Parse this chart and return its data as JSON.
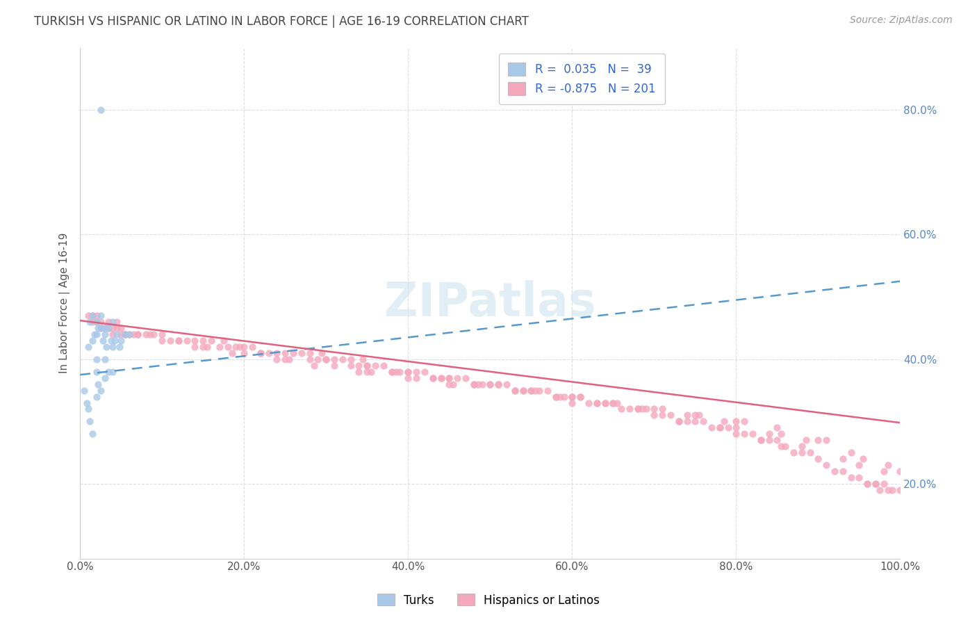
{
  "title": "TURKISH VS HISPANIC OR LATINO IN LABOR FORCE | AGE 16-19 CORRELATION CHART",
  "source_text": "Source: ZipAtlas.com",
  "ylabel": "In Labor Force | Age 16-19",
  "watermark": "ZIPatlas",
  "blue_scatter_color": "#a8c8e8",
  "pink_scatter_color": "#f4a8bc",
  "blue_line_color": "#5599cc",
  "pink_line_color": "#e06080",
  "background_color": "#ffffff",
  "grid_color": "#cccccc",
  "xlim": [
    0.0,
    1.0
  ],
  "ylim": [
    0.08,
    0.9
  ],
  "xtick_labels": [
    "0.0%",
    "20.0%",
    "40.0%",
    "60.0%",
    "80.0%",
    "100.0%"
  ],
  "xtick_values": [
    0.0,
    0.2,
    0.4,
    0.6,
    0.8,
    1.0
  ],
  "ytick_labels": [
    "20.0%",
    "40.0%",
    "60.0%",
    "80.0%"
  ],
  "ytick_values": [
    0.2,
    0.4,
    0.6,
    0.8
  ],
  "turks_x": [
    0.005,
    0.008,
    0.01,
    0.01,
    0.012,
    0.012,
    0.015,
    0.015,
    0.015,
    0.018,
    0.02,
    0.02,
    0.02,
    0.02,
    0.02,
    0.022,
    0.022,
    0.025,
    0.025,
    0.025,
    0.028,
    0.03,
    0.03,
    0.03,
    0.03,
    0.032,
    0.035,
    0.035,
    0.038,
    0.04,
    0.04,
    0.04,
    0.042,
    0.045,
    0.048,
    0.05,
    0.055,
    0.06,
    0.025
  ],
  "turks_y": [
    0.35,
    0.33,
    0.42,
    0.32,
    0.46,
    0.3,
    0.47,
    0.43,
    0.28,
    0.44,
    0.46,
    0.44,
    0.4,
    0.38,
    0.34,
    0.45,
    0.36,
    0.47,
    0.45,
    0.35,
    0.43,
    0.45,
    0.44,
    0.4,
    0.37,
    0.42,
    0.45,
    0.38,
    0.43,
    0.46,
    0.42,
    0.38,
    0.43,
    0.44,
    0.42,
    0.43,
    0.44,
    0.44,
    0.8
  ],
  "hisp_x": [
    0.01,
    0.015,
    0.02,
    0.025,
    0.03,
    0.035,
    0.04,
    0.045,
    0.05,
    0.055,
    0.06,
    0.065,
    0.07,
    0.08,
    0.09,
    0.1,
    0.11,
    0.12,
    0.13,
    0.14,
    0.15,
    0.16,
    0.17,
    0.175,
    0.18,
    0.19,
    0.195,
    0.2,
    0.21,
    0.22,
    0.23,
    0.24,
    0.25,
    0.26,
    0.27,
    0.28,
    0.29,
    0.295,
    0.3,
    0.31,
    0.32,
    0.33,
    0.34,
    0.345,
    0.35,
    0.36,
    0.37,
    0.38,
    0.39,
    0.4,
    0.41,
    0.42,
    0.43,
    0.44,
    0.45,
    0.46,
    0.47,
    0.48,
    0.49,
    0.5,
    0.51,
    0.52,
    0.53,
    0.54,
    0.55,
    0.56,
    0.57,
    0.58,
    0.59,
    0.6,
    0.61,
    0.62,
    0.63,
    0.64,
    0.65,
    0.66,
    0.67,
    0.68,
    0.69,
    0.7,
    0.71,
    0.72,
    0.73,
    0.74,
    0.75,
    0.76,
    0.77,
    0.78,
    0.79,
    0.8,
    0.81,
    0.82,
    0.83,
    0.84,
    0.85,
    0.855,
    0.86,
    0.87,
    0.88,
    0.89,
    0.9,
    0.91,
    0.92,
    0.93,
    0.94,
    0.95,
    0.96,
    0.97,
    0.98,
    0.99,
    1.0,
    0.025,
    0.035,
    0.045,
    0.3,
    0.35,
    0.4,
    0.45,
    0.5,
    0.55,
    0.6,
    0.65,
    0.7,
    0.75,
    0.8,
    0.85,
    0.9,
    0.95,
    0.28,
    0.33,
    0.38,
    0.43,
    0.48,
    0.53,
    0.58,
    0.63,
    0.68,
    0.73,
    0.78,
    0.83,
    0.88,
    0.93,
    0.98,
    0.015,
    0.07,
    0.15,
    0.22,
    0.31,
    0.41,
    0.51,
    0.61,
    0.71,
    0.81,
    0.91,
    0.055,
    0.155,
    0.255,
    0.355,
    0.455,
    0.555,
    0.655,
    0.755,
    0.855,
    0.955,
    0.085,
    0.185,
    0.285,
    0.385,
    0.485,
    0.585,
    0.685,
    0.785,
    0.885,
    0.985,
    0.04,
    0.14,
    0.24,
    0.34,
    0.44,
    0.54,
    0.64,
    0.74,
    0.84,
    0.94,
    0.02,
    0.12,
    0.96,
    0.97,
    0.975,
    0.985,
    0.1,
    0.2,
    0.4,
    0.6,
    0.8,
    1.0,
    0.05,
    0.25,
    0.35,
    0.45
  ],
  "hisp_y": [
    0.47,
    0.46,
    0.46,
    0.45,
    0.45,
    0.46,
    0.45,
    0.46,
    0.45,
    0.44,
    0.44,
    0.44,
    0.44,
    0.44,
    0.44,
    0.44,
    0.43,
    0.43,
    0.43,
    0.43,
    0.43,
    0.43,
    0.42,
    0.43,
    0.42,
    0.42,
    0.42,
    0.42,
    0.42,
    0.41,
    0.41,
    0.41,
    0.41,
    0.41,
    0.41,
    0.4,
    0.4,
    0.41,
    0.4,
    0.4,
    0.4,
    0.39,
    0.39,
    0.4,
    0.39,
    0.39,
    0.39,
    0.38,
    0.38,
    0.38,
    0.38,
    0.38,
    0.37,
    0.37,
    0.37,
    0.37,
    0.37,
    0.36,
    0.36,
    0.36,
    0.36,
    0.36,
    0.35,
    0.35,
    0.35,
    0.35,
    0.35,
    0.34,
    0.34,
    0.34,
    0.34,
    0.33,
    0.33,
    0.33,
    0.33,
    0.32,
    0.32,
    0.32,
    0.32,
    0.31,
    0.31,
    0.31,
    0.3,
    0.3,
    0.3,
    0.3,
    0.29,
    0.29,
    0.29,
    0.28,
    0.28,
    0.28,
    0.27,
    0.27,
    0.27,
    0.26,
    0.26,
    0.25,
    0.25,
    0.25,
    0.24,
    0.23,
    0.22,
    0.22,
    0.21,
    0.21,
    0.2,
    0.2,
    0.2,
    0.19,
    0.19,
    0.46,
    0.45,
    0.45,
    0.4,
    0.39,
    0.38,
    0.37,
    0.36,
    0.35,
    0.34,
    0.33,
    0.32,
    0.31,
    0.3,
    0.29,
    0.27,
    0.23,
    0.41,
    0.4,
    0.38,
    0.37,
    0.36,
    0.35,
    0.34,
    0.33,
    0.32,
    0.3,
    0.29,
    0.27,
    0.26,
    0.24,
    0.22,
    0.47,
    0.44,
    0.42,
    0.41,
    0.39,
    0.37,
    0.36,
    0.34,
    0.32,
    0.3,
    0.27,
    0.44,
    0.42,
    0.4,
    0.38,
    0.36,
    0.35,
    0.33,
    0.31,
    0.28,
    0.24,
    0.44,
    0.41,
    0.39,
    0.38,
    0.36,
    0.34,
    0.32,
    0.3,
    0.27,
    0.23,
    0.44,
    0.42,
    0.4,
    0.38,
    0.37,
    0.35,
    0.33,
    0.31,
    0.28,
    0.25,
    0.47,
    0.43,
    0.2,
    0.2,
    0.19,
    0.19,
    0.43,
    0.41,
    0.37,
    0.33,
    0.29,
    0.22,
    0.44,
    0.4,
    0.38,
    0.36
  ]
}
